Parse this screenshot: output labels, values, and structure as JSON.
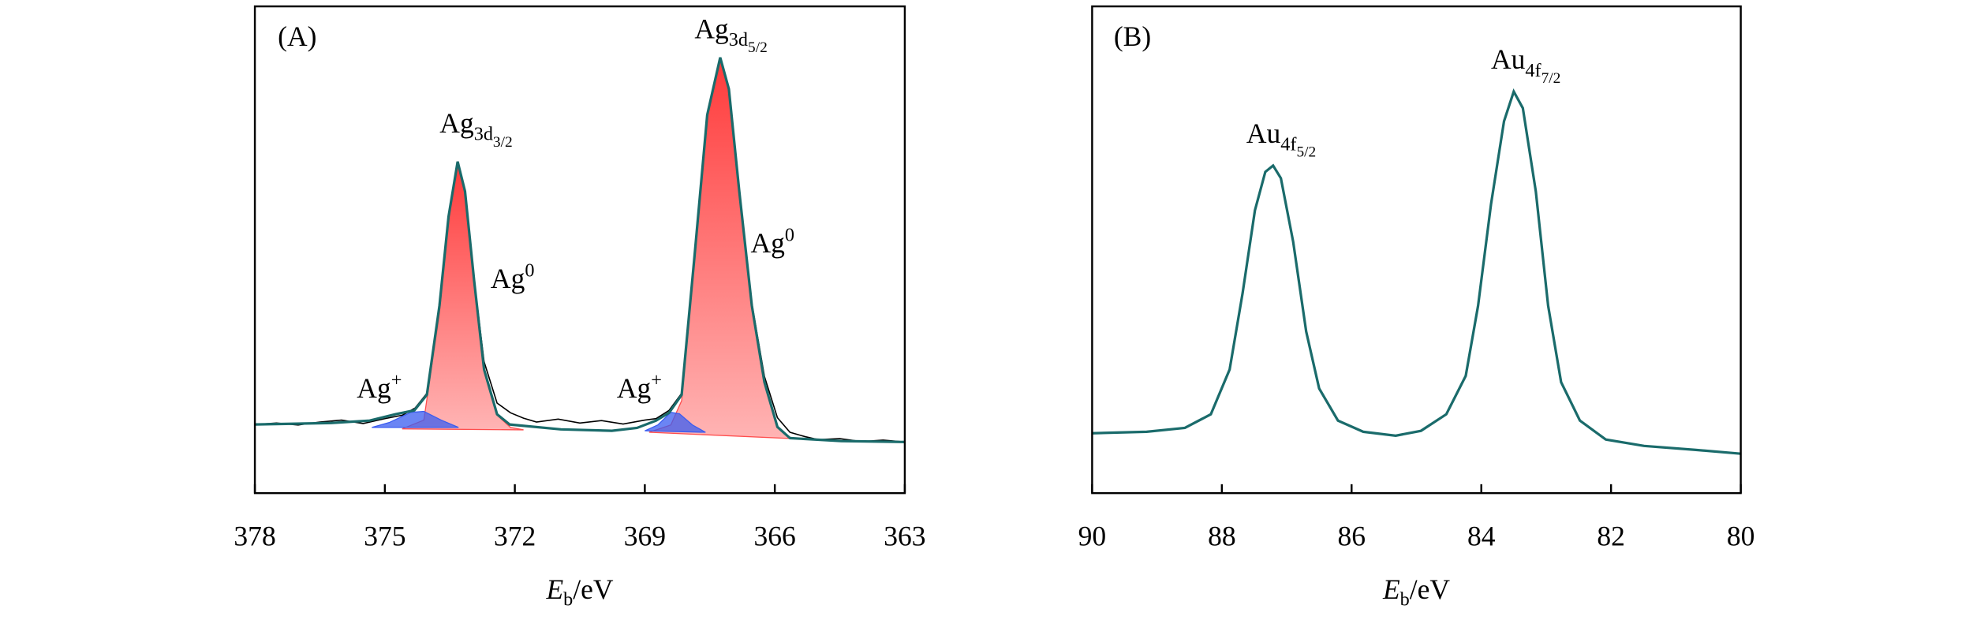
{
  "chart_data": [
    {
      "type": "line",
      "label": "(A)",
      "xlabel": {
        "italic": "E",
        "sub": "b",
        "text": "/eV"
      },
      "xlim": [
        378,
        363
      ],
      "xticks": [
        378,
        375,
        372,
        369,
        366,
        363
      ],
      "ylim": [
        0,
        100
      ],
      "annotations": [
        {
          "text": "Ag",
          "sub": "3d",
          "sub2": "3/2"
        },
        {
          "text": "Ag",
          "sup": "0"
        },
        {
          "text": "Ag",
          "sup": "+"
        },
        {
          "text": "Ag",
          "sup": "+"
        },
        {
          "text": "Ag",
          "sub": "3d",
          "sub2": "5/2"
        },
        {
          "text": "Ag",
          "sup": "0"
        }
      ],
      "series": [
        {
          "style": "line",
          "color": "#000000",
          "x": [
            378,
            377.5,
            377,
            376.5,
            376,
            375.5,
            375,
            374.6,
            374.3,
            374.03,
            373.74,
            373.53,
            373.32,
            373.15,
            372.94,
            372.71,
            372.41,
            372.1,
            371.8,
            371.5,
            371,
            370.5,
            370,
            369.5,
            369,
            368.74,
            368.44,
            368.15,
            367.85,
            367.56,
            367.26,
            367.06,
            366.82,
            366.53,
            366.24,
            365.94,
            365.65,
            365.3,
            365,
            364.5,
            364,
            363.5,
            363
          ],
          "y": [
            14.1,
            14.4,
            14.0,
            14.6,
            15.0,
            14.3,
            15.3,
            16.0,
            17.5,
            20.5,
            38.5,
            57,
            68.1,
            62,
            44,
            27,
            18.5,
            16.5,
            15.4,
            14.6,
            15.2,
            14.4,
            14.9,
            14.2,
            15.0,
            15.3,
            17.0,
            20.5,
            49,
            77.7,
            89.5,
            83,
            62,
            39,
            24,
            15.5,
            12.5,
            11.6,
            11.0,
            11.2,
            10.6,
            10.9,
            10.5
          ]
        },
        {
          "style": "area",
          "color": "#ff4d4d",
          "x": [
            374.6,
            374.1,
            373.74,
            373.53,
            373.32,
            373.15,
            372.94,
            372.71,
            372.41,
            372.1,
            371.8
          ],
          "y": [
            13.2,
            15,
            37,
            56,
            68,
            62,
            43.5,
            25,
            16,
            13.5,
            13
          ]
        },
        {
          "style": "area",
          "color": "#ff4d4d",
          "x": [
            368.9,
            368.4,
            368.15,
            367.85,
            367.56,
            367.26,
            367.06,
            366.82,
            366.53,
            366.24,
            365.94,
            365.6
          ],
          "y": [
            12.5,
            14,
            19,
            48.5,
            77.5,
            89.3,
            83,
            62,
            38.5,
            22.5,
            13.4,
            11.2
          ]
        },
        {
          "style": "area",
          "color": "#3a5cf0",
          "x": [
            375.3,
            374.9,
            374.4,
            374.1,
            373.7,
            373.3
          ],
          "y": [
            13.5,
            14.5,
            16.6,
            16.8,
            15,
            13.5
          ]
        },
        {
          "style": "area",
          "color": "#3a5cf0",
          "x": [
            369.0,
            368.7,
            368.4,
            368.2,
            367.9,
            367.6
          ],
          "y": [
            12.8,
            14,
            16.6,
            16.3,
            14,
            12.5
          ]
        },
        {
          "style": "line",
          "color": "#1a6b6b",
          "x": [
            378,
            376.24,
            375.35,
            374.76,
            374.32,
            374.03,
            373.74,
            373.53,
            373.32,
            373.15,
            372.94,
            372.71,
            372.41,
            372.12,
            370.94,
            369.76,
            369.18,
            368.74,
            368.44,
            368.15,
            367.85,
            367.56,
            367.26,
            367.06,
            366.82,
            366.53,
            366.24,
            365.94,
            365.65,
            364.47,
            363
          ],
          "y": [
            14.1,
            14.4,
            14.9,
            16.2,
            17.0,
            20.2,
            38.5,
            56.8,
            68.1,
            62.0,
            43.7,
            25.4,
            16.2,
            14.1,
            13.1,
            12.8,
            13.4,
            14.9,
            16.5,
            20.2,
            49.0,
            77.7,
            89.5,
            83.0,
            62.0,
            38.5,
            22.8,
            13.6,
            11.3,
            10.7,
            10.5
          ]
        }
      ]
    },
    {
      "type": "line",
      "label": "(B)",
      "xlabel": {
        "italic": "E",
        "sub": "b",
        "text": "/eV"
      },
      "xlim": [
        90,
        80
      ],
      "xticks": [
        90,
        88,
        86,
        84,
        82,
        80
      ],
      "ylim": [
        0,
        100
      ],
      "annotations": [
        {
          "text": "Au",
          "sub": "4f",
          "sub2": "5/2"
        },
        {
          "text": "Au",
          "sub": "4f",
          "sub2": "7/2"
        }
      ],
      "series": [
        {
          "style": "line",
          "color": "#1a6b6b",
          "x": [
            90.0,
            89.16,
            88.57,
            88.17,
            87.88,
            87.68,
            87.49,
            87.33,
            87.21,
            87.09,
            86.9,
            86.7,
            86.5,
            86.21,
            85.82,
            85.32,
            84.93,
            84.54,
            84.24,
            84.05,
            83.85,
            83.65,
            83.5,
            83.36,
            83.16,
            82.97,
            82.77,
            82.48,
            82.08,
            81.49,
            80.71,
            80.0
          ],
          "y": [
            12.3,
            12.6,
            13.4,
            16.2,
            25.4,
            41.1,
            58.1,
            66.0,
            67.3,
            64.7,
            51.6,
            33.2,
            21.5,
            14.9,
            12.6,
            11.8,
            12.8,
            16.2,
            24.1,
            38.5,
            59.4,
            76.4,
            82.5,
            79.1,
            62.0,
            38.5,
            22.8,
            14.9,
            11.0,
            9.7,
            8.9,
            8.1
          ]
        }
      ]
    }
  ]
}
